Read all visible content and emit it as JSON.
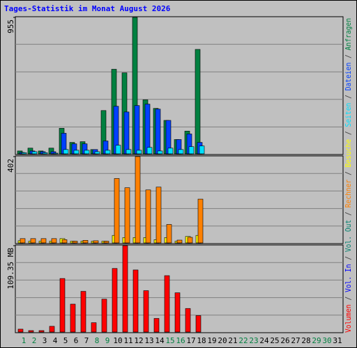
{
  "title": "Tages-Statistik im Monat August 2026",
  "legend_separator": " / ",
  "x_axis": {
    "categories": [
      "1",
      "2",
      "3",
      "4",
      "5",
      "6",
      "7",
      "8",
      "9",
      "10",
      "11",
      "12",
      "13",
      "14",
      "15",
      "16",
      "17",
      "18",
      "19",
      "20",
      "21",
      "22",
      "23",
      "24",
      "25",
      "26",
      "27",
      "28",
      "29",
      "30",
      "31"
    ],
    "category_colors": [
      "#008040",
      "#008040",
      "#000000",
      "#000000",
      "#000000",
      "#000000",
      "#000000",
      "#008040",
      "#008040",
      "#000000",
      "#000000",
      "#000000",
      "#000000",
      "#000000",
      "#008040",
      "#008040",
      "#000000",
      "#000000",
      "#000000",
      "#000000",
      "#000000",
      "#008040",
      "#008040",
      "#000000",
      "#000000",
      "#000000",
      "#000000",
      "#000000",
      "#008040",
      "#008040",
      "#000000"
    ]
  },
  "chart_data": [
    {
      "type": "bar",
      "ylim": [
        0,
        955
      ],
      "yticks": [
        955
      ],
      "series": [
        {
          "name": "Anfragen",
          "color": "#008040",
          "values": [
            20,
            40,
            20,
            40,
            179,
            80,
            85,
            30,
            303,
            592,
            567,
            955,
            378,
            318,
            234,
            100,
            159,
            731,
            null,
            null,
            null,
            null,
            null,
            null,
            null,
            null,
            null,
            null,
            null,
            null,
            null
          ]
        },
        {
          "name": "Dateien",
          "color": "#0040FF",
          "values": [
            10,
            20,
            15,
            15,
            144,
            70,
            70,
            30,
            90,
            333,
            293,
            338,
            348,
            313,
            234,
            100,
            139,
            80,
            null,
            null,
            null,
            null,
            null,
            null,
            null,
            null,
            null,
            null,
            null,
            null,
            null
          ]
        },
        {
          "name": "Seiten",
          "color": "#00E0FF",
          "values": [
            8,
            15,
            8,
            5,
            30,
            25,
            25,
            15,
            25,
            60,
            30,
            25,
            45,
            20,
            40,
            30,
            50,
            55,
            null,
            null,
            null,
            null,
            null,
            null,
            null,
            null,
            null,
            null,
            null,
            null,
            null
          ]
        }
      ]
    },
    {
      "type": "bar",
      "ylim": [
        0,
        402
      ],
      "yticks": [
        402
      ],
      "series": [
        {
          "name": "Besuche",
          "color": "#FFFF00",
          "values": [
            10,
            8,
            8,
            8,
            20,
            8,
            8,
            8,
            8,
            35,
            25,
            25,
            25,
            15,
            25,
            8,
            30,
            35,
            null,
            null,
            null,
            null,
            null,
            null,
            null,
            null,
            null,
            null,
            null,
            null,
            null
          ]
        },
        {
          "name": "Rechner",
          "color": "#FF8000",
          "values": [
            20,
            20,
            20,
            20,
            15,
            8,
            12,
            10,
            8,
            300,
            257,
            402,
            247,
            260,
            86,
            13,
            26,
            204,
            null,
            null,
            null,
            null,
            null,
            null,
            null,
            null,
            null,
            null,
            null,
            null,
            null
          ]
        }
      ]
    },
    {
      "type": "bar",
      "ylim": [
        0,
        109.35
      ],
      "yticks": [
        {
          "value": 109.35,
          "label": "109.35 MB"
        }
      ],
      "series": [
        {
          "name": "Vol. Out",
          "color": "#00806E",
          "values": [
            null,
            null,
            null,
            null,
            null,
            null,
            null,
            null,
            null,
            null,
            null,
            null,
            null,
            null,
            null,
            null,
            null,
            null,
            null,
            null,
            null,
            null,
            null,
            null,
            null,
            null,
            null,
            null,
            null,
            null,
            null
          ]
        },
        {
          "name": "Vol. In",
          "color": "#0000FF",
          "values": [
            null,
            null,
            null,
            null,
            null,
            null,
            null,
            null,
            null,
            null,
            null,
            null,
            null,
            null,
            null,
            null,
            null,
            null,
            null,
            null,
            null,
            null,
            null,
            null,
            null,
            null,
            null,
            null,
            null,
            null,
            null
          ]
        },
        {
          "name": "Volumen",
          "color": "#FF0000",
          "values": [
            3.6,
            1.8,
            1.8,
            7.2,
            67.8,
            35.3,
            51.5,
            11.8,
            41.6,
            80.5,
            109.35,
            78.6,
            52.4,
            17.2,
            71.4,
            49.7,
            29.8,
            20.8,
            null,
            null,
            null,
            null,
            null,
            null,
            null,
            null,
            null,
            null,
            null,
            null,
            null
          ]
        }
      ]
    }
  ]
}
